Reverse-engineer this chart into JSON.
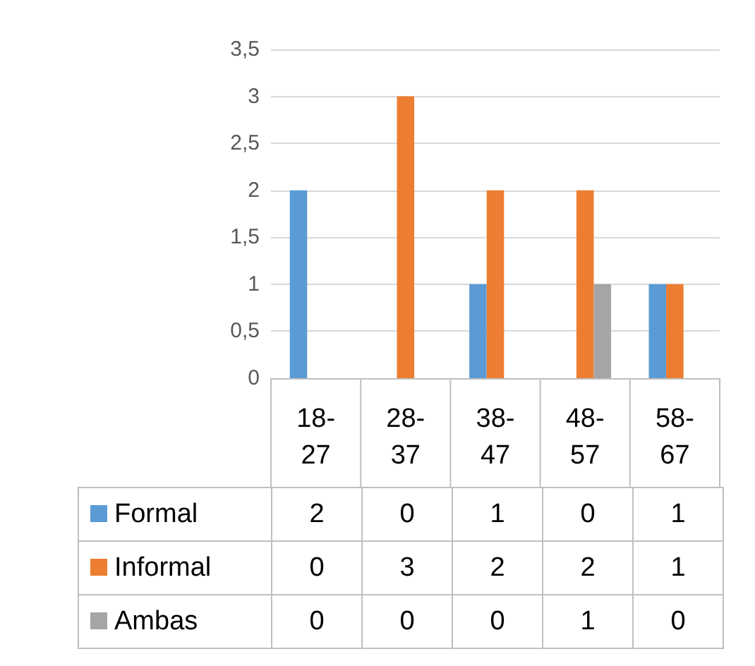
{
  "chart_data": {
    "type": "bar",
    "categories": [
      "18-27",
      "28-37",
      "38-47",
      "48-57",
      "58-67"
    ],
    "series": [
      {
        "name": "Formal",
        "color": "#5b9bd5",
        "values": [
          2,
          0,
          1,
          0,
          1
        ]
      },
      {
        "name": "Informal",
        "color": "#ed7d31",
        "values": [
          0,
          3,
          2,
          2,
          1
        ]
      },
      {
        "name": "Ambas",
        "color": "#a5a5a5",
        "values": [
          0,
          0,
          0,
          1,
          0
        ]
      }
    ],
    "ylim": [
      0,
      3.5
    ],
    "yticks": [
      0,
      {
        "value": 0.5,
        "label": "0,5"
      },
      1,
      {
        "value": 1.5,
        "label": "1,5"
      },
      2,
      {
        "value": 2.5,
        "label": "2,5"
      },
      3,
      {
        "value": 3.5,
        "label": "3,5"
      }
    ],
    "grid": "y",
    "data_labels": true,
    "legend": "bottom"
  }
}
